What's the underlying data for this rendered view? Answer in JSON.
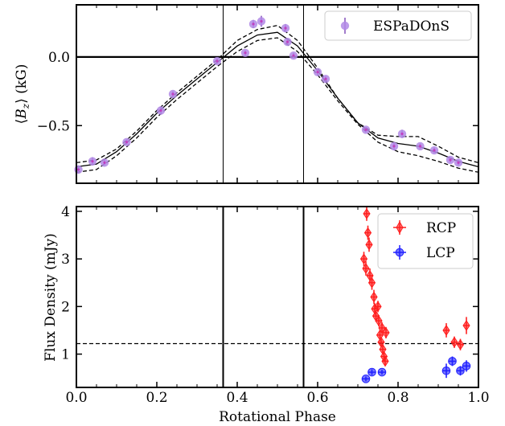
{
  "chart_data": [
    {
      "type": "scatter",
      "title": "",
      "xlabel": "",
      "ylabel": "⟨B_z⟩ (kG)",
      "ylabel_parts": {
        "pre": "⟨",
        "sym": "B",
        "sub": "z",
        "post": "⟩ (kG)"
      },
      "xlim": [
        0.0,
        1.0
      ],
      "ylim": [
        -0.92,
        0.38
      ],
      "yticks": [
        0.0,
        -0.5
      ],
      "ytick_labels": [
        "0.0",
        "−0.5"
      ],
      "xticks": [
        0.0,
        0.2,
        0.4,
        0.6,
        0.8,
        1.0
      ],
      "grid": false,
      "legend": {
        "position": "top-right",
        "entries": [
          "ESPaDOnS"
        ]
      },
      "reference_lines": {
        "horizontal": [
          0.0
        ],
        "vertical": [
          0.365,
          0.565
        ]
      },
      "series": [
        {
          "name": "ESPaDOnS",
          "color": "#b28ae6",
          "marker": "circle",
          "errorbar_color": "#8a5bbf",
          "points": [
            {
              "x": 0.005,
              "y": -0.82,
              "err": 0.03
            },
            {
              "x": 0.04,
              "y": -0.76,
              "err": 0.03
            },
            {
              "x": 0.07,
              "y": -0.77,
              "err": 0.02
            },
            {
              "x": 0.125,
              "y": -0.62,
              "err": 0.02
            },
            {
              "x": 0.21,
              "y": -0.39,
              "err": 0.03
            },
            {
              "x": 0.24,
              "y": -0.27,
              "err": 0.02
            },
            {
              "x": 0.35,
              "y": -0.03,
              "err": 0.02
            },
            {
              "x": 0.42,
              "y": 0.03,
              "err": 0.02
            },
            {
              "x": 0.44,
              "y": 0.24,
              "err": 0.03
            },
            {
              "x": 0.46,
              "y": 0.26,
              "err": 0.04
            },
            {
              "x": 0.52,
              "y": 0.21,
              "err": 0.03
            },
            {
              "x": 0.525,
              "y": 0.11,
              "err": 0.02
            },
            {
              "x": 0.54,
              "y": 0.01,
              "err": 0.02
            },
            {
              "x": 0.6,
              "y": -0.11,
              "err": 0.02
            },
            {
              "x": 0.62,
              "y": -0.16,
              "err": 0.02
            },
            {
              "x": 0.72,
              "y": -0.53,
              "err": 0.02
            },
            {
              "x": 0.79,
              "y": -0.65,
              "err": 0.03
            },
            {
              "x": 0.81,
              "y": -0.56,
              "err": 0.03
            },
            {
              "x": 0.855,
              "y": -0.65,
              "err": 0.02
            },
            {
              "x": 0.89,
              "y": -0.68,
              "err": 0.02
            },
            {
              "x": 0.93,
              "y": -0.75,
              "err": 0.02
            },
            {
              "x": 0.95,
              "y": -0.77,
              "err": 0.02
            }
          ]
        }
      ],
      "model_curves": [
        {
          "style": "solid",
          "points": [
            [
              0.0,
              -0.8
            ],
            [
              0.05,
              -0.78
            ],
            [
              0.1,
              -0.69
            ],
            [
              0.15,
              -0.56
            ],
            [
              0.2,
              -0.41
            ],
            [
              0.25,
              -0.28
            ],
            [
              0.3,
              -0.16
            ],
            [
              0.35,
              -0.04
            ],
            [
              0.4,
              0.08
            ],
            [
              0.45,
              0.16
            ],
            [
              0.5,
              0.18
            ],
            [
              0.55,
              0.08
            ],
            [
              0.6,
              -0.1
            ],
            [
              0.65,
              -0.3
            ],
            [
              0.7,
              -0.48
            ],
            [
              0.75,
              -0.59
            ],
            [
              0.8,
              -0.63
            ],
            [
              0.85,
              -0.65
            ],
            [
              0.9,
              -0.7
            ],
            [
              0.95,
              -0.76
            ],
            [
              1.0,
              -0.8
            ]
          ]
        },
        {
          "style": "dashed",
          "points": [
            [
              0.0,
              -0.77
            ],
            [
              0.05,
              -0.75
            ],
            [
              0.1,
              -0.67
            ],
            [
              0.15,
              -0.54
            ],
            [
              0.2,
              -0.39
            ],
            [
              0.25,
              -0.26
            ],
            [
              0.3,
              -0.14
            ],
            [
              0.35,
              -0.02
            ],
            [
              0.4,
              0.12
            ],
            [
              0.45,
              0.2
            ],
            [
              0.5,
              0.23
            ],
            [
              0.55,
              0.12
            ],
            [
              0.6,
              -0.08
            ],
            [
              0.65,
              -0.3
            ],
            [
              0.7,
              -0.48
            ],
            [
              0.75,
              -0.57
            ],
            [
              0.8,
              -0.58
            ],
            [
              0.85,
              -0.58
            ],
            [
              0.9,
              -0.65
            ],
            [
              0.95,
              -0.73
            ],
            [
              1.0,
              -0.77
            ]
          ]
        },
        {
          "style": "dashed",
          "points": [
            [
              0.0,
              -0.84
            ],
            [
              0.05,
              -0.82
            ],
            [
              0.1,
              -0.72
            ],
            [
              0.15,
              -0.59
            ],
            [
              0.2,
              -0.44
            ],
            [
              0.25,
              -0.31
            ],
            [
              0.3,
              -0.19
            ],
            [
              0.35,
              -0.07
            ],
            [
              0.4,
              0.04
            ],
            [
              0.45,
              0.12
            ],
            [
              0.5,
              0.14
            ],
            [
              0.55,
              0.04
            ],
            [
              0.6,
              -0.13
            ],
            [
              0.65,
              -0.32
            ],
            [
              0.7,
              -0.49
            ],
            [
              0.75,
              -0.62
            ],
            [
              0.8,
              -0.69
            ],
            [
              0.85,
              -0.72
            ],
            [
              0.9,
              -0.76
            ],
            [
              0.95,
              -0.81
            ],
            [
              1.0,
              -0.84
            ]
          ]
        }
      ]
    },
    {
      "type": "scatter",
      "title": "",
      "xlabel": "Rotational Phase",
      "ylabel": "Flux Density (mJy)",
      "xlim": [
        0.0,
        1.0
      ],
      "ylim": [
        0.3,
        4.1
      ],
      "yticks": [
        1,
        2,
        3,
        4
      ],
      "ytick_labels": [
        "1",
        "2",
        "3",
        "4"
      ],
      "xticks": [
        0.0,
        0.2,
        0.4,
        0.6,
        0.8,
        1.0
      ],
      "xtick_labels": [
        "0.0",
        "0.2",
        "0.4",
        "0.6",
        "0.8",
        "1.0"
      ],
      "grid": false,
      "legend": {
        "position": "top-right",
        "entries": [
          "RCP",
          "LCP"
        ]
      },
      "reference_lines": {
        "horizontal_dashed": [
          1.22
        ],
        "vertical": [
          0.365,
          0.565
        ]
      },
      "series": [
        {
          "name": "RCP",
          "color": "#ff2020",
          "marker": "diamond",
          "points": [
            {
              "x": 0.715,
              "y": 3.0,
              "err": 0.15
            },
            {
              "x": 0.72,
              "y": 2.8,
              "err": 0.15
            },
            {
              "x": 0.722,
              "y": 3.95,
              "err": 0.15
            },
            {
              "x": 0.725,
              "y": 3.55,
              "err": 0.15
            },
            {
              "x": 0.728,
              "y": 3.3,
              "err": 0.15
            },
            {
              "x": 0.73,
              "y": 2.65,
              "err": 0.15
            },
            {
              "x": 0.735,
              "y": 2.5,
              "err": 0.15
            },
            {
              "x": 0.74,
              "y": 2.2,
              "err": 0.15
            },
            {
              "x": 0.742,
              "y": 1.95,
              "err": 0.12
            },
            {
              "x": 0.745,
              "y": 1.8,
              "err": 0.12
            },
            {
              "x": 0.75,
              "y": 2.0,
              "err": 0.12
            },
            {
              "x": 0.752,
              "y": 1.7,
              "err": 0.12
            },
            {
              "x": 0.755,
              "y": 1.4,
              "err": 0.12
            },
            {
              "x": 0.758,
              "y": 1.25,
              "err": 0.1
            },
            {
              "x": 0.76,
              "y": 1.55,
              "err": 0.12
            },
            {
              "x": 0.762,
              "y": 1.1,
              "err": 0.1
            },
            {
              "x": 0.765,
              "y": 0.95,
              "err": 0.1
            },
            {
              "x": 0.768,
              "y": 0.85,
              "err": 0.1
            },
            {
              "x": 0.77,
              "y": 1.45,
              "err": 0.12
            },
            {
              "x": 0.92,
              "y": 1.5,
              "err": 0.15
            },
            {
              "x": 0.94,
              "y": 1.25,
              "err": 0.12
            },
            {
              "x": 0.955,
              "y": 1.2,
              "err": 0.12
            },
            {
              "x": 0.97,
              "y": 1.6,
              "err": 0.18
            }
          ]
        },
        {
          "name": "LCP",
          "color": "#2020ff",
          "marker": "circle",
          "points": [
            {
              "x": 0.72,
              "y": 0.48,
              "err": 0.05
            },
            {
              "x": 0.735,
              "y": 0.62,
              "err": 0.06
            },
            {
              "x": 0.76,
              "y": 0.62,
              "err": 0.05
            },
            {
              "x": 0.92,
              "y": 0.65,
              "err": 0.15
            },
            {
              "x": 0.935,
              "y": 0.85,
              "err": 0.1
            },
            {
              "x": 0.955,
              "y": 0.65,
              "err": 0.1
            },
            {
              "x": 0.97,
              "y": 0.75,
              "err": 0.12
            }
          ]
        }
      ]
    }
  ]
}
